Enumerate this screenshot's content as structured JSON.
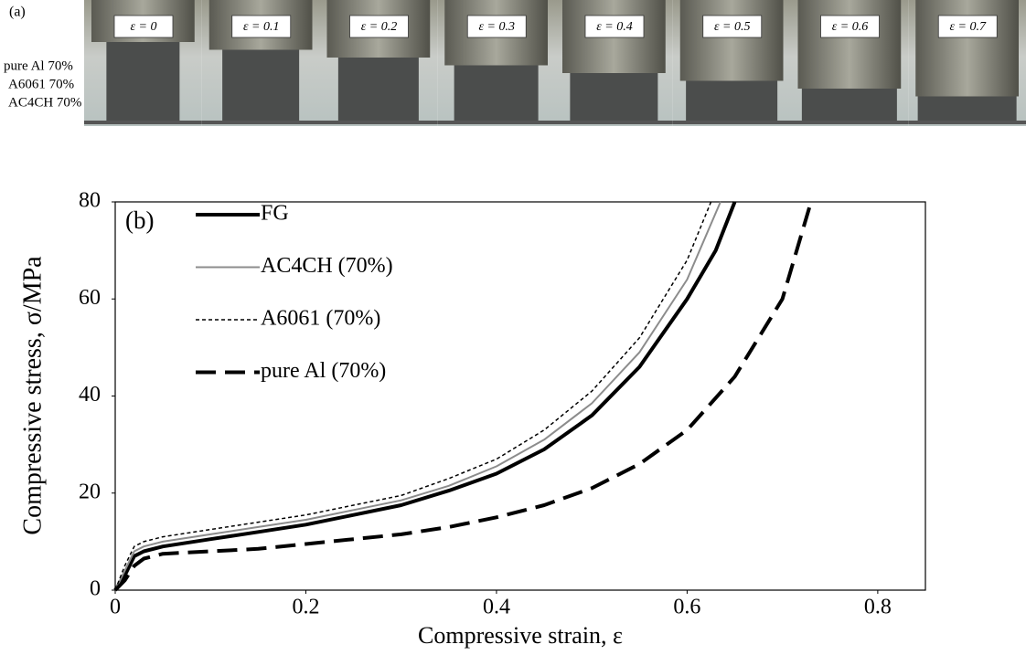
{
  "panel_a": {
    "label": "(a)",
    "row_labels": [
      "pure Al  70%",
      "A6061   70%",
      "AC4CH 70%"
    ],
    "frame_labels": [
      "ε = 0",
      "ε = 0.1",
      "ε = 0.2",
      "ε = 0.3",
      "ε = 0.4",
      "ε = 0.5",
      "ε = 0.6",
      "ε = 0.7"
    ]
  },
  "chart_data": {
    "type": "line",
    "panel_label": "(b)",
    "x_label": "Compressive strain, ε",
    "y_label": "Compressive stress, σ/MPa",
    "xlim": [
      0,
      0.85
    ],
    "xticks": [
      0,
      0.2,
      0.4,
      0.6,
      0.8
    ],
    "ylim": [
      0,
      80
    ],
    "yticks": [
      0,
      20,
      40,
      60,
      80
    ],
    "grid": false,
    "legend": "upper-left",
    "series": [
      {
        "name": "FG",
        "color": "#000000",
        "width": 4,
        "dash": "none",
        "x": [
          0,
          0.01,
          0.02,
          0.03,
          0.05,
          0.1,
          0.15,
          0.2,
          0.25,
          0.3,
          0.35,
          0.4,
          0.45,
          0.5,
          0.55,
          0.6,
          0.63,
          0.65
        ],
        "values": [
          0,
          3,
          7,
          8,
          9,
          10.5,
          12,
          13.5,
          15.5,
          17.5,
          20.5,
          24,
          29,
          36,
          46,
          60,
          70,
          80
        ]
      },
      {
        "name": "AC4CH (70%)",
        "color": "#8c8c8c",
        "width": 2,
        "dash": "none",
        "x": [
          0,
          0.01,
          0.02,
          0.03,
          0.05,
          0.1,
          0.15,
          0.2,
          0.25,
          0.3,
          0.35,
          0.4,
          0.45,
          0.5,
          0.55,
          0.6,
          0.635
        ],
        "values": [
          0,
          4,
          8,
          9,
          10,
          11.5,
          13,
          14.5,
          16.5,
          18.5,
          21.5,
          25.5,
          31,
          38.5,
          49,
          64,
          80
        ]
      },
      {
        "name": "A6061 (70%)",
        "color": "#000000",
        "width": 1.5,
        "dash": "4 3",
        "x": [
          0,
          0.01,
          0.02,
          0.03,
          0.05,
          0.1,
          0.15,
          0.2,
          0.25,
          0.3,
          0.35,
          0.4,
          0.45,
          0.5,
          0.55,
          0.6,
          0.625
        ],
        "values": [
          0,
          5,
          9,
          10,
          11,
          12.5,
          14,
          15.5,
          17.5,
          19.5,
          23,
          27,
          33,
          41,
          52,
          68,
          80
        ]
      },
      {
        "name": "pure Al (70%)",
        "color": "#000000",
        "width": 4,
        "dash": "22 10",
        "x": [
          0,
          0.01,
          0.02,
          0.03,
          0.05,
          0.1,
          0.15,
          0.2,
          0.25,
          0.3,
          0.35,
          0.4,
          0.45,
          0.5,
          0.55,
          0.6,
          0.65,
          0.7,
          0.73
        ],
        "values": [
          0,
          2,
          5,
          6.5,
          7.5,
          8,
          8.5,
          9.5,
          10.5,
          11.5,
          13,
          15,
          17.5,
          21,
          26,
          33,
          44,
          60,
          80
        ]
      }
    ]
  }
}
